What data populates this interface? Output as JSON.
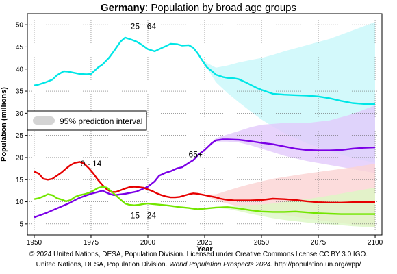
{
  "title_bold": "Germany",
  "title_rest": ": Population by broad age groups",
  "credits": {
    "line1": "© 2024 United Nations, DESA, Population Division. Licensed under Creative Commons license CC BY 3.0 IGO.",
    "line2_a": "United Nations, DESA, Population Division. ",
    "line2_italic": "World Population Prospects 2024",
    "line2_b": ". http://population.un.org/wpp/"
  },
  "chart_data": {
    "type": "line",
    "xlabel": "Year",
    "ylabel": "Population (millions)",
    "xlim": [
      1947,
      2103
    ],
    "ylim": [
      2.5,
      52.5
    ],
    "xticks": [
      1950,
      1975,
      2000,
      2025,
      2050,
      2075,
      2100
    ],
    "yticks": [
      5,
      10,
      15,
      20,
      25,
      30,
      35,
      40,
      45,
      50
    ],
    "grid": true,
    "legend": {
      "position": "left",
      "entries": [
        "95% prediction interval"
      ]
    },
    "series": [
      {
        "name": "25 - 64",
        "color": "#00e6e6",
        "band_color": "#c8f8fa",
        "x": [
          1950,
          1952,
          1955,
          1958,
          1960,
          1963,
          1965,
          1968,
          1970,
          1973,
          1975,
          1978,
          1980,
          1983,
          1985,
          1988,
          1990,
          1993,
          1995,
          1997,
          2000,
          2003,
          2005,
          2008,
          2010,
          2013,
          2015,
          2018,
          2020,
          2022,
          2024,
          2026,
          2028,
          2030,
          2033,
          2035,
          2038,
          2040,
          2043,
          2045,
          2048,
          2050,
          2055,
          2060,
          2065,
          2070,
          2075,
          2080,
          2085,
          2090,
          2095,
          2100
        ],
        "values": [
          36.3,
          36.5,
          37.0,
          37.6,
          38.6,
          39.5,
          39.4,
          39.1,
          38.9,
          38.8,
          38.9,
          40.3,
          41.0,
          42.6,
          44.0,
          46.2,
          47.1,
          46.6,
          46.2,
          45.6,
          44.5,
          44.0,
          44.5,
          45.2,
          45.7,
          45.6,
          45.3,
          45.4,
          44.8,
          43.5,
          41.9,
          40.4,
          39.6,
          38.7,
          38.2,
          38.0,
          37.9,
          37.7,
          37.0,
          36.5,
          35.7,
          35.3,
          34.4,
          34.2,
          34.1,
          34.0,
          33.8,
          33.4,
          32.8,
          32.3,
          32.1,
          32.1
        ],
        "band_x": [
          2024,
          2030,
          2035,
          2040,
          2045,
          2050,
          2055,
          2060,
          2070,
          2080,
          2090,
          2100
        ],
        "band_low": [
          41.9,
          37.0,
          34.6,
          32.5,
          30.5,
          28.6,
          27.0,
          25.5,
          23.2,
          21.4,
          19.9,
          18.8
        ],
        "band_high": [
          41.9,
          40.3,
          40.8,
          41.5,
          42.0,
          42.5,
          43.2,
          44.0,
          45.4,
          46.8,
          48.7,
          50.6
        ]
      },
      {
        "name": "65+",
        "color": "#7b00e6",
        "band_color": "#e2c9fb",
        "x": [
          1950,
          1955,
          1960,
          1965,
          1970,
          1975,
          1978,
          1980,
          1983,
          1985,
          1990,
          1995,
          2000,
          2003,
          2005,
          2008,
          2010,
          2013,
          2015,
          2018,
          2020,
          2022,
          2025,
          2028,
          2030,
          2033,
          2035,
          2040,
          2045,
          2050,
          2055,
          2060,
          2065,
          2070,
          2075,
          2080,
          2085,
          2090,
          2095,
          2100
        ],
        "values": [
          6.5,
          7.4,
          8.5,
          9.6,
          10.9,
          11.8,
          12.2,
          12.5,
          11.8,
          11.5,
          11.8,
          12.3,
          13.4,
          14.6,
          15.9,
          16.6,
          16.9,
          17.6,
          17.8,
          18.8,
          19.4,
          20.5,
          21.7,
          23.2,
          23.9,
          24.1,
          24.1,
          24.0,
          23.7,
          23.3,
          23.0,
          22.5,
          22.0,
          21.7,
          21.6,
          21.6,
          21.7,
          22.0,
          22.2,
          22.3
        ],
        "band_x": [
          2024,
          2030,
          2035,
          2040,
          2045,
          2050,
          2055,
          2060,
          2070,
          2080,
          2090,
          2100
        ],
        "band_low": [
          21.3,
          23.6,
          23.6,
          23.4,
          22.8,
          22.0,
          21.2,
          20.4,
          19.2,
          18.3,
          17.4,
          16.5
        ],
        "band_high": [
          21.3,
          24.4,
          25.2,
          26.0,
          26.8,
          27.4,
          27.6,
          27.8,
          27.8,
          28.4,
          29.8,
          31.8
        ]
      },
      {
        "name": "0 - 14",
        "color": "#e60000",
        "band_color": "#fbd3d3",
        "x": [
          1950,
          1952,
          1954,
          1956,
          1958,
          1960,
          1962,
          1964,
          1966,
          1968,
          1970,
          1972,
          1974,
          1976,
          1978,
          1980,
          1982,
          1984,
          1986,
          1988,
          1990,
          1992,
          1994,
          1996,
          1998,
          2000,
          2002,
          2004,
          2006,
          2008,
          2010,
          2012,
          2014,
          2016,
          2018,
          2020,
          2022,
          2024,
          2026,
          2028,
          2030,
          2032,
          2034,
          2036,
          2038,
          2040,
          2045,
          2050,
          2055,
          2060,
          2065,
          2070,
          2075,
          2080,
          2085,
          2090,
          2095,
          2100
        ],
        "values": [
          16.8,
          16.4,
          15.2,
          15.0,
          15.2,
          15.9,
          16.6,
          17.5,
          18.3,
          18.8,
          19.0,
          18.6,
          17.6,
          16.4,
          15.0,
          13.8,
          12.8,
          12.2,
          12.2,
          12.6,
          13.0,
          13.3,
          13.4,
          13.3,
          13.2,
          12.8,
          12.4,
          11.9,
          11.5,
          11.2,
          11.0,
          11.0,
          11.1,
          11.4,
          11.7,
          11.9,
          11.8,
          11.6,
          11.4,
          11.2,
          11.0,
          10.7,
          10.5,
          10.4,
          10.3,
          10.3,
          10.3,
          10.4,
          10.7,
          10.6,
          10.4,
          10.1,
          9.9,
          9.8,
          9.8,
          9.9,
          9.9,
          9.9
        ],
        "band_x": [
          2024,
          2030,
          2035,
          2040,
          2045,
          2050,
          2055,
          2060,
          2070,
          2080,
          2090,
          2100
        ],
        "band_low": [
          11.6,
          10.3,
          9.6,
          8.9,
          8.3,
          7.8,
          7.4,
          7.0,
          6.2,
          5.5,
          4.9,
          4.4
        ],
        "band_high": [
          11.6,
          11.7,
          12.5,
          13.3,
          14.0,
          14.6,
          15.2,
          15.6,
          16.4,
          17.1,
          17.8,
          18.6
        ]
      },
      {
        "name": "15 - 24",
        "color": "#73e600",
        "band_color": "#dcf8c4",
        "x": [
          1950,
          1952,
          1954,
          1956,
          1958,
          1960,
          1962,
          1964,
          1966,
          1968,
          1970,
          1972,
          1974,
          1976,
          1978,
          1980,
          1982,
          1984,
          1986,
          1988,
          1990,
          1992,
          1994,
          1996,
          1998,
          2000,
          2002,
          2004,
          2006,
          2008,
          2010,
          2014,
          2018,
          2022,
          2026,
          2030,
          2035,
          2040,
          2045,
          2050,
          2055,
          2060,
          2065,
          2070,
          2075,
          2080,
          2085,
          2090,
          2095,
          2100
        ],
        "values": [
          10.6,
          10.8,
          11.2,
          11.7,
          11.5,
          10.8,
          10.5,
          10.1,
          10.4,
          11.1,
          11.5,
          11.7,
          12.0,
          12.5,
          13.1,
          13.4,
          13.2,
          12.3,
          11.4,
          10.5,
          9.6,
          9.3,
          9.2,
          9.3,
          9.5,
          9.6,
          9.5,
          9.4,
          9.3,
          9.2,
          9.1,
          8.8,
          8.6,
          8.3,
          8.5,
          8.7,
          8.8,
          8.5,
          8.1,
          7.8,
          7.7,
          7.7,
          7.8,
          7.6,
          7.4,
          7.3,
          7.2,
          7.2,
          7.2,
          7.2
        ],
        "band_x": [
          2024,
          2030,
          2035,
          2040,
          2045,
          2050,
          2055,
          2060,
          2070,
          2080,
          2090,
          2100
        ],
        "band_low": [
          8.3,
          8.6,
          8.4,
          7.9,
          7.3,
          6.8,
          6.3,
          5.9,
          5.3,
          4.9,
          4.5,
          4.2
        ],
        "band_high": [
          8.3,
          8.8,
          9.1,
          9.2,
          9.3,
          9.4,
          9.6,
          10.0,
          10.6,
          11.4,
          12.3,
          13.2
        ]
      }
    ],
    "series_labels": [
      {
        "text": "25 - 64",
        "series": "25 - 64",
        "at_x": 1998,
        "at_y": 49.0
      },
      {
        "text": "65+",
        "series": "65+",
        "at_x": 2021,
        "at_y": 20.1
      },
      {
        "text": "0 - 14",
        "series": "0 - 14",
        "at_x": 1975,
        "at_y": 18.0
      },
      {
        "text": "15 - 24",
        "series": "15 - 24",
        "at_x": 1998,
        "at_y": 6.3
      }
    ]
  }
}
